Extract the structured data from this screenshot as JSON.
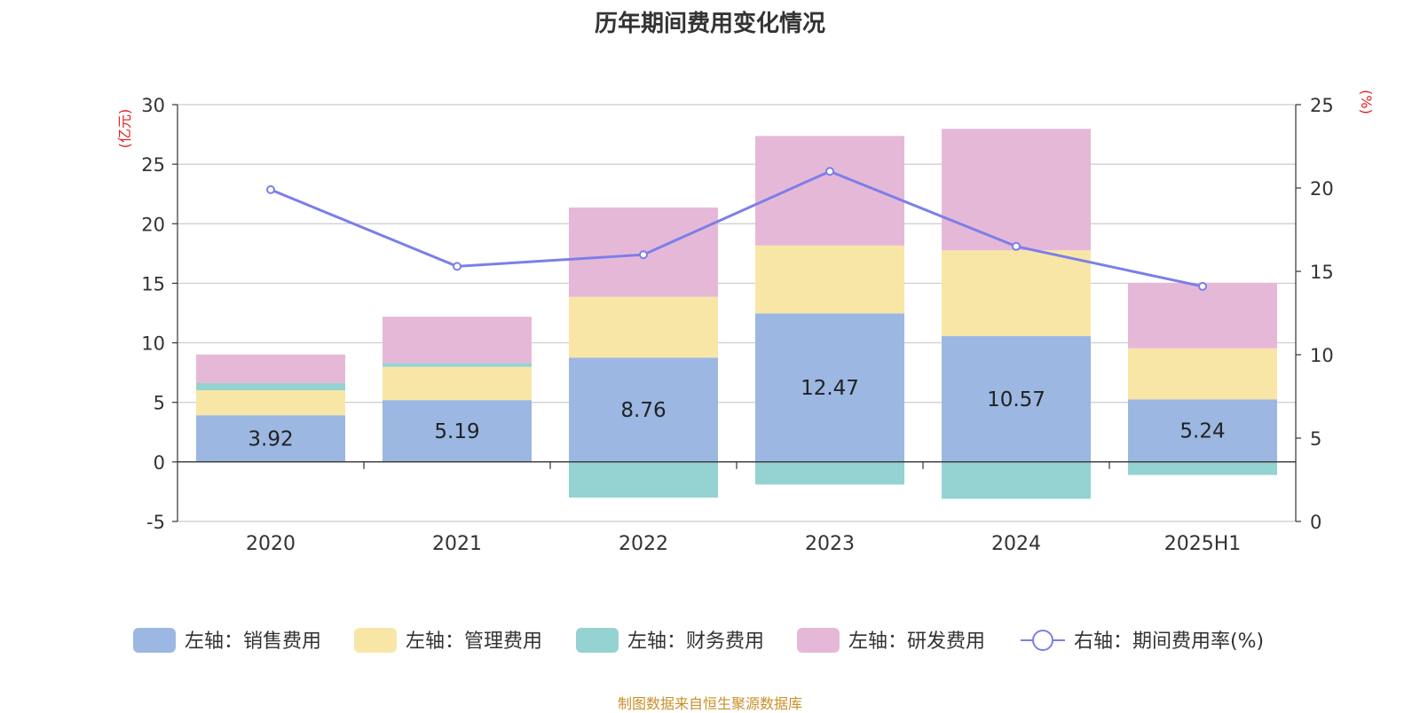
{
  "title": "历年期间费用变化情况",
  "source": "制图数据来自恒生聚源数据库",
  "chart_data": {
    "type": "bar",
    "stacked": true,
    "categories": [
      "2020",
      "2021",
      "2022",
      "2023",
      "2024",
      "2025H1"
    ],
    "left_axis": {
      "unit": "(亿元)",
      "range": [
        -5,
        30
      ],
      "ticks": [
        -5,
        0,
        5,
        10,
        15,
        20,
        25,
        30
      ]
    },
    "right_axis": {
      "unit": "(%)",
      "range": [
        0,
        25
      ],
      "ticks": [
        0,
        5,
        10,
        15,
        20,
        25
      ]
    },
    "grid": true,
    "legend_position": "bottom",
    "series": [
      {
        "name": "左轴：销售费用",
        "axis": "left",
        "type": "bar",
        "color": "#9bb7e2",
        "values": [
          3.92,
          5.19,
          8.76,
          12.47,
          10.57,
          5.24
        ],
        "show_labels": true
      },
      {
        "name": "左轴：管理费用",
        "axis": "left",
        "type": "bar",
        "color": "#f8e6a6",
        "values": [
          2.1,
          2.8,
          5.1,
          5.7,
          7.2,
          4.3
        ],
        "show_labels": false
      },
      {
        "name": "左轴：财务费用",
        "axis": "left",
        "type": "bar",
        "color": "#94d3d2",
        "values": [
          0.6,
          0.3,
          -3.0,
          -1.9,
          -3.1,
          -1.1
        ],
        "show_labels": false
      },
      {
        "name": "左轴：研发费用",
        "axis": "left",
        "type": "bar",
        "color": "#e6b8d8",
        "values": [
          2.4,
          3.9,
          7.5,
          9.2,
          10.2,
          5.5
        ],
        "show_labels": false
      },
      {
        "name": "右轴：期间费用率(%)",
        "axis": "right",
        "type": "line",
        "color": "#7b7fe8",
        "values": [
          19.9,
          15.3,
          16.0,
          21.0,
          16.5,
          14.1
        ],
        "show_labels": false
      }
    ]
  }
}
